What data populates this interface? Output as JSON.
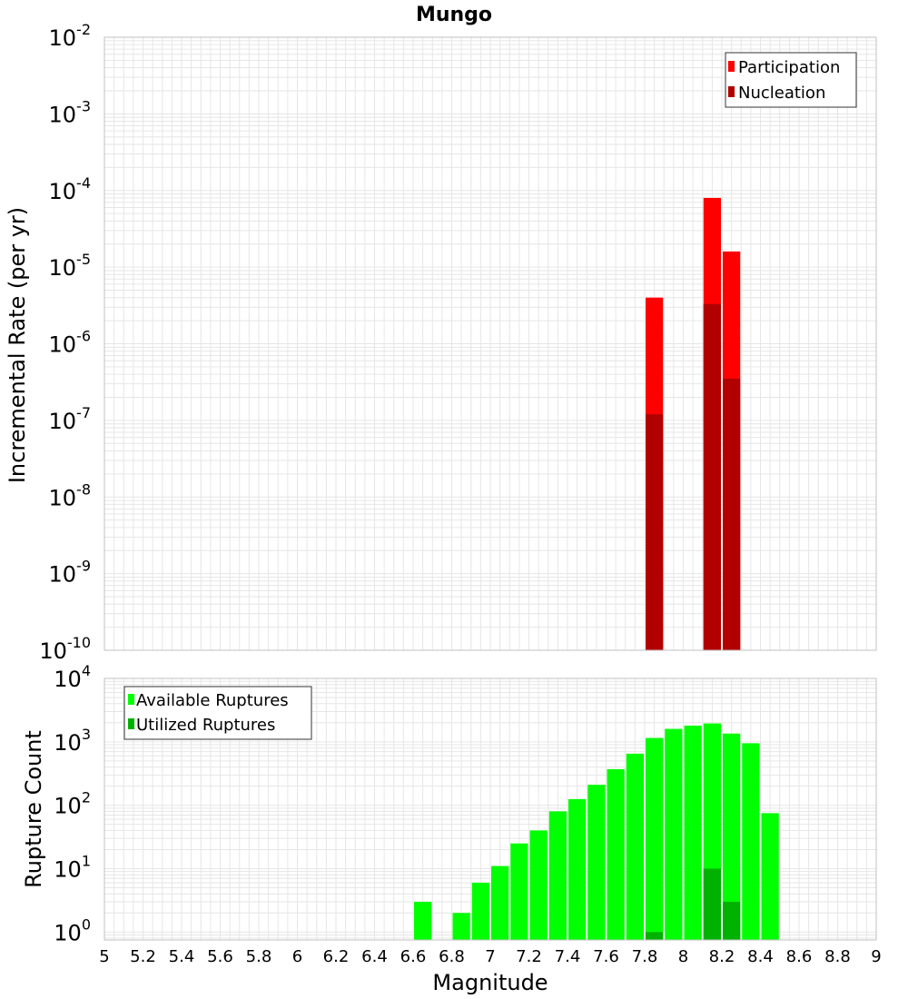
{
  "title": "Mungo",
  "colors": {
    "participation": "#ff0000",
    "nucleation": "#b20000",
    "available": "#00ff00",
    "utilized": "#00b200",
    "grid": "#e6e6e6",
    "frame": "#c0c0c0"
  },
  "chart_data": [
    {
      "type": "bar",
      "id": "rate",
      "title": "Mungo",
      "xlabel": "Magnitude",
      "ylabel": "Incremental Rate (per yr)",
      "yscale": "log",
      "ylim": [
        1e-10,
        0.01
      ],
      "xlim": [
        5,
        9
      ],
      "y_ticks": [
        {
          "value": 1e-10,
          "base": "10",
          "exp": "-10"
        },
        {
          "value": 1e-09,
          "base": "10",
          "exp": "-9"
        },
        {
          "value": 1e-08,
          "base": "10",
          "exp": "-8"
        },
        {
          "value": 1e-07,
          "base": "10",
          "exp": "-7"
        },
        {
          "value": 1e-06,
          "base": "10",
          "exp": "-6"
        },
        {
          "value": 1e-05,
          "base": "10",
          "exp": "-5"
        },
        {
          "value": 0.0001,
          "base": "10",
          "exp": "-4"
        },
        {
          "value": 0.001,
          "base": "10",
          "exp": "-3"
        },
        {
          "value": 0.01,
          "base": "10",
          "exp": "-2"
        }
      ],
      "legend": [
        {
          "label": "Participation",
          "series": "participation"
        },
        {
          "label": "Nucleation",
          "series": "nucleation"
        }
      ],
      "legend_position": "top-right",
      "series": [
        {
          "name": "Participation",
          "key": "participation",
          "x": [
            7.85,
            8.15,
            8.25
          ],
          "values": [
            4e-06,
            8e-05,
            1.6e-05
          ]
        },
        {
          "name": "Nucleation",
          "key": "nucleation",
          "x": [
            7.85,
            8.15,
            8.25
          ],
          "values": [
            1.2e-07,
            3.3e-06,
            3.5e-07
          ]
        }
      ]
    },
    {
      "type": "bar",
      "id": "count",
      "xlabel": "Magnitude",
      "ylabel": "Rupture Count",
      "yscale": "log",
      "ylim": [
        0.75,
        10000
      ],
      "xlim": [
        5,
        9
      ],
      "x_ticks": [
        "5",
        "5.2",
        "5.4",
        "5.6",
        "5.8",
        "6",
        "6.2",
        "6.4",
        "6.6",
        "6.8",
        "7",
        "7.2",
        "7.4",
        "7.6",
        "7.8",
        "8",
        "8.2",
        "8.4",
        "8.6",
        "8.8",
        "9"
      ],
      "y_ticks": [
        {
          "value": 1,
          "base": "10",
          "exp": "0"
        },
        {
          "value": 10,
          "base": "10",
          "exp": "1"
        },
        {
          "value": 100,
          "base": "10",
          "exp": "2"
        },
        {
          "value": 1000,
          "base": "10",
          "exp": "3"
        },
        {
          "value": 10000,
          "base": "10",
          "exp": "4"
        }
      ],
      "legend": [
        {
          "label": "Available Ruptures",
          "series": "available"
        },
        {
          "label": "Utilized Ruptures",
          "series": "utilized"
        }
      ],
      "legend_position": "top-left",
      "series": [
        {
          "name": "Available Ruptures",
          "key": "available",
          "x": [
            6.65,
            6.85,
            6.95,
            7.05,
            7.15,
            7.25,
            7.35,
            7.45,
            7.55,
            7.65,
            7.75,
            7.85,
            7.95,
            8.05,
            8.15,
            8.25,
            8.35,
            8.45
          ],
          "values": [
            3,
            2,
            6,
            11,
            25,
            40,
            80,
            125,
            210,
            370,
            650,
            1150,
            1600,
            1800,
            1950,
            1350,
            950,
            75
          ]
        },
        {
          "name": "Utilized Ruptures",
          "key": "utilized",
          "x": [
            7.85,
            8.15,
            8.25
          ],
          "values": [
            1,
            10,
            3
          ]
        }
      ]
    }
  ]
}
